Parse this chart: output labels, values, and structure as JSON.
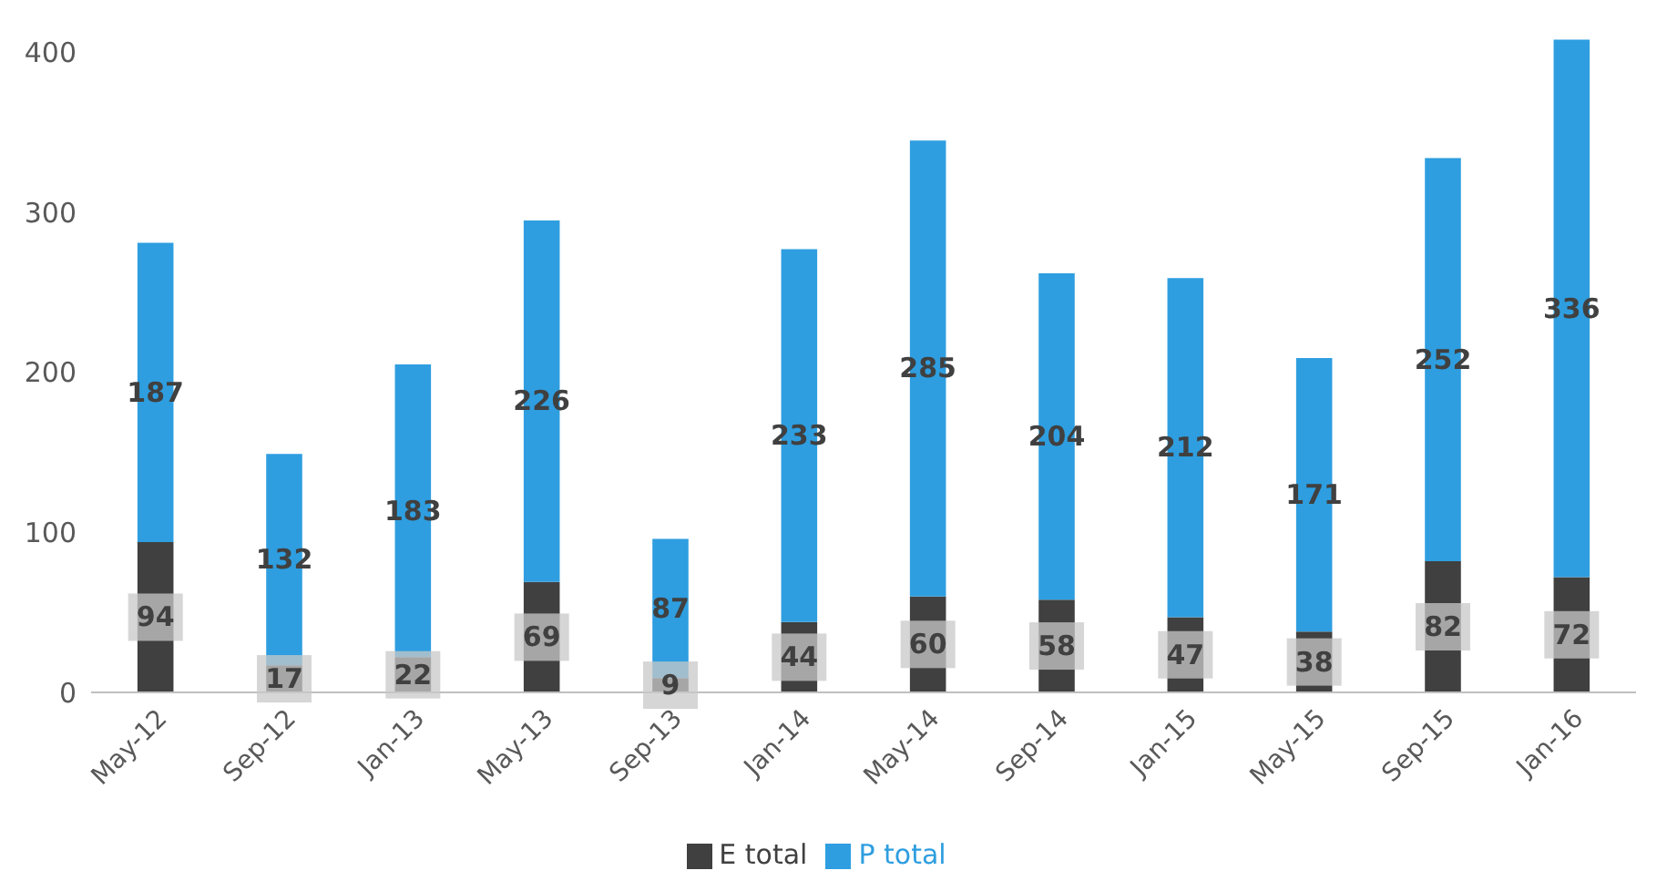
{
  "chart_data": {
    "type": "bar",
    "stacked": true,
    "categories": [
      "May-12",
      "Sep-12",
      "Jan-13",
      "May-13",
      "Sep-13",
      "Jan-14",
      "May-14",
      "Sep-14",
      "Jan-15",
      "May-15",
      "Sep-15",
      "Jan-16"
    ],
    "series": [
      {
        "name": "E total",
        "color": "#404040",
        "values": [
          94,
          17,
          22,
          69,
          9,
          44,
          60,
          58,
          47,
          38,
          82,
          72
        ]
      },
      {
        "name": "P total",
        "color": "#2e9ee0",
        "values": [
          187,
          132,
          183,
          226,
          87,
          233,
          285,
          204,
          212,
          171,
          252,
          336
        ]
      }
    ],
    "ylim": [
      0,
      410
    ],
    "yticks": [
      0,
      100,
      200,
      300,
      400
    ],
    "legend": "bottom",
    "data_labels": true
  }
}
